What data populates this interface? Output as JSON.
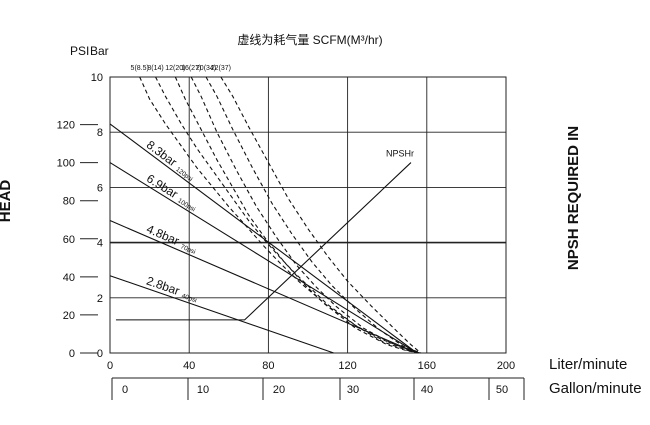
{
  "chart_data": {
    "type": "line",
    "title": "虚线为耗气量 SCFM(M³/hr)",
    "left_axis_title": "HEAD",
    "right_axis_title": "NPSH REQUIRED IN",
    "psi_label": "PSI",
    "bar_label": "Bar",
    "xlabel": "Liter/minute",
    "x2label": "Gallon/minute",
    "xlim": [
      0,
      200
    ],
    "x_ticks": [
      "0",
      "40",
      "80",
      "120",
      "160",
      "200"
    ],
    "gallon_ticks": [
      "0",
      "10",
      "20",
      "30",
      "40",
      "50"
    ],
    "psi_lim": [
      0,
      140
    ],
    "psi_ticks": [
      "0",
      "20",
      "40",
      "60",
      "80",
      "100",
      "120"
    ],
    "bar_lim": [
      0,
      10
    ],
    "bar_ticks": [
      "0",
      "2",
      "4",
      "6",
      "8",
      "10"
    ],
    "top_ticks": [
      {
        "label": "5(8.5)",
        "x": 15
      },
      {
        "label": "8(14)",
        "x": 23
      },
      {
        "label": "12(20)",
        "x": 33
      },
      {
        "label": "16(27)",
        "x": 41
      },
      {
        "label": "20(34)",
        "x": 48.5
      },
      {
        "label": "22(37)",
        "x": 56
      }
    ],
    "grid": true,
    "series": [
      {
        "name": "8.3bar",
        "sub": "120psi",
        "style": "solid",
        "x": [
          0,
          155
        ],
        "y": [
          8.3,
          0
        ]
      },
      {
        "name": "6.9bar",
        "sub": "100psi",
        "style": "solid",
        "x": [
          0,
          155
        ],
        "y": [
          6.9,
          0
        ]
      },
      {
        "name": "4.8bar",
        "sub": "70psi",
        "style": "solid",
        "x": [
          0,
          155
        ],
        "y": [
          4.8,
          0
        ]
      },
      {
        "name": "2.8bar",
        "sub": "40psi",
        "style": "solid",
        "x": [
          0,
          113
        ],
        "y": [
          2.8,
          0
        ]
      },
      {
        "name": "NPSHr",
        "sub": "",
        "style": "solid",
        "x": [
          3,
          68,
          152
        ],
        "y": [
          1.2,
          1.2,
          6.9
        ]
      },
      {
        "name": "",
        "style": "dashed",
        "x": [
          15,
          20,
          28,
          36,
          44,
          52,
          60,
          70,
          78,
          86,
          96,
          110,
          124,
          137,
          148,
          156
        ],
        "y": [
          10,
          9.2,
          8.3,
          7.5,
          6.7,
          6.0,
          5.3,
          4.5,
          3.85,
          3.25,
          2.55,
          1.7,
          1.0,
          0.5,
          0.2,
          0
        ]
      },
      {
        "name": "",
        "style": "dashed",
        "x": [
          23,
          28,
          36,
          44,
          52,
          60,
          70,
          78,
          86,
          94,
          110,
          125,
          138,
          150,
          157
        ],
        "y": [
          10,
          9.3,
          8.3,
          7.4,
          6.6,
          5.8,
          4.8,
          4.1,
          3.45,
          2.85,
          1.75,
          0.95,
          0.4,
          0.1,
          0
        ]
      },
      {
        "name": "",
        "style": "dashed",
        "x": [
          33,
          38,
          46,
          54,
          62,
          70,
          78,
          88,
          98,
          108,
          124,
          140,
          150,
          157
        ],
        "y": [
          10,
          9.2,
          8.1,
          7.0,
          6.0,
          5.0,
          4.2,
          3.3,
          2.5,
          1.8,
          0.9,
          0.3,
          0.08,
          0
        ]
      },
      {
        "name": "",
        "style": "dashed",
        "x": [
          41,
          46,
          54,
          64,
          74,
          84,
          94,
          104,
          114,
          128,
          142,
          152,
          157
        ],
        "y": [
          10,
          9.3,
          8.0,
          6.6,
          5.3,
          4.2,
          3.2,
          2.4,
          1.7,
          0.9,
          0.35,
          0.08,
          0
        ]
      },
      {
        "name": "",
        "style": "dashed",
        "x": [
          48.5,
          54,
          62,
          72,
          82,
          92,
          102,
          112,
          124,
          136,
          148,
          157
        ],
        "y": [
          10,
          9.3,
          8.1,
          6.7,
          5.4,
          4.3,
          3.3,
          2.45,
          1.6,
          0.85,
          0.25,
          0
        ]
      },
      {
        "name": "",
        "style": "dashed",
        "x": [
          56,
          62,
          70,
          80,
          90,
          100,
          110,
          120,
          132,
          144,
          152,
          157
        ],
        "y": [
          10,
          9.3,
          8.2,
          6.9,
          5.6,
          4.5,
          3.5,
          2.6,
          1.7,
          0.85,
          0.3,
          0
        ]
      }
    ]
  }
}
